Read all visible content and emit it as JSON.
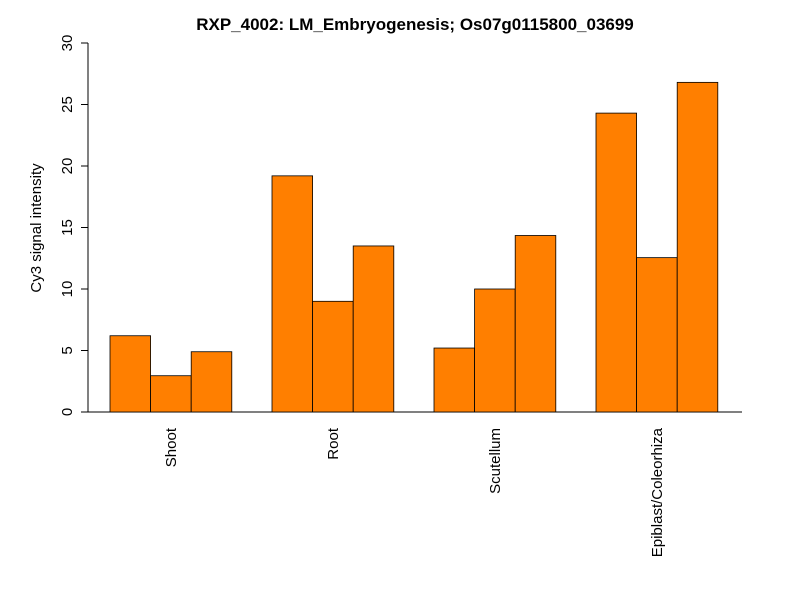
{
  "chart_data": {
    "type": "bar",
    "title": "RXP_4002: LM_Embryogenesis; Os07g0115800_03699",
    "ylabel": "Cy3 signal intensity",
    "xlabel": "",
    "ylim": [
      0,
      30
    ],
    "yticks": [
      0,
      5,
      10,
      15,
      20,
      25,
      30
    ],
    "categories": [
      "Shoot",
      "Root",
      "Scutellum",
      "Epiblast/Coleorhiza"
    ],
    "values": [
      [
        6.2,
        2.95,
        4.9
      ],
      [
        19.2,
        9.0,
        13.5
      ],
      [
        5.2,
        10.0,
        14.35
      ],
      [
        24.3,
        12.55,
        26.8
      ]
    ],
    "bar_color": "#FF7F00",
    "grid": false,
    "legend": "none"
  }
}
